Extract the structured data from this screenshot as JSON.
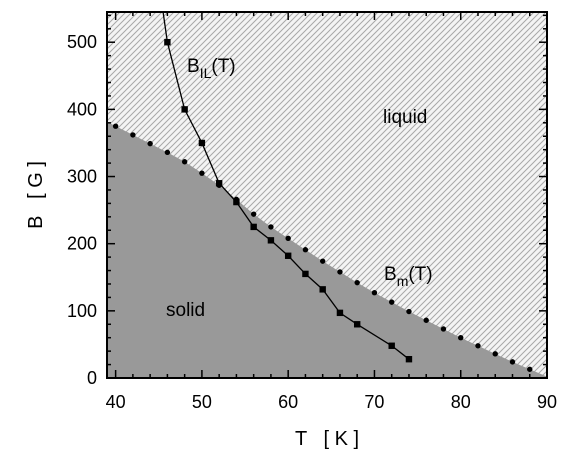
{
  "chart_data": {
    "type": "scatter",
    "title": "",
    "xlabel": "T   [ K ]",
    "ylabel": "B   [ G ]",
    "xlim": [
      39,
      90
    ],
    "ylim": [
      0,
      545
    ],
    "xticks": [
      40,
      50,
      60,
      70,
      80,
      90
    ],
    "yticks": [
      0,
      100,
      200,
      300,
      400,
      500
    ],
    "grid": false,
    "regions": [
      {
        "name": "liquid",
        "fill": "hatched-light",
        "position": "above melting line"
      },
      {
        "name": "solid",
        "fill": "#999999",
        "position": "below melting line"
      }
    ],
    "annotations": {
      "liquid": "liquid",
      "solid": "solid",
      "bil_main": "B",
      "bil_sub": "IL",
      "bil_tail": "(T)",
      "bm_main": "B",
      "bm_sub": "m",
      "bm_tail": "(T)"
    },
    "series": [
      {
        "name": "B_m(T)",
        "marker": "dot",
        "x": [
          40,
          42,
          44,
          46,
          48,
          50,
          52,
          54,
          56,
          58,
          60,
          62,
          64,
          66,
          68,
          70,
          72,
          74,
          76,
          78,
          80,
          82,
          84,
          86,
          88
        ],
        "y": [
          375,
          362,
          349,
          336,
          322,
          305,
          287,
          266,
          244,
          225,
          208,
          191,
          174,
          158,
          142,
          127,
          113,
          99,
          86,
          73,
          60,
          48,
          36,
          24,
          13
        ]
      },
      {
        "name": "B_IL(T)",
        "marker": "square",
        "x": [
          46,
          48,
          50,
          52,
          54,
          56,
          58,
          60,
          62,
          64,
          66,
          68,
          72,
          74
        ],
        "y": [
          500,
          400,
          350,
          290,
          262,
          225,
          205,
          182,
          155,
          132,
          97,
          80,
          48,
          28
        ],
        "extend_to": [
          45.5,
          545
        ]
      }
    ],
    "colors": {
      "solid_fill": "#999999",
      "liquid_bg": "#f4f4f4",
      "hatch": "#a8a8a8",
      "line": "#000000"
    }
  }
}
